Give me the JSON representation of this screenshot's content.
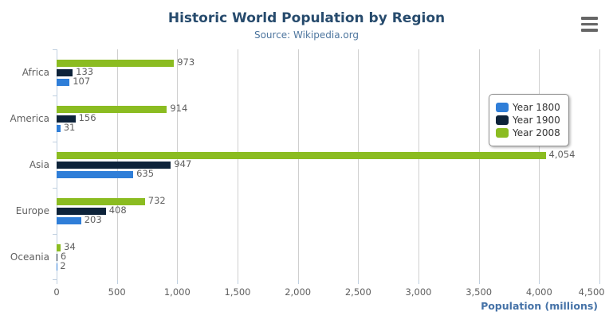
{
  "header": {
    "title": "Historic World Population by Region",
    "subtitle": "Source: Wikipedia.org"
  },
  "menu": {
    "icon": "hamburger-menu-icon"
  },
  "colors": {
    "title": "#274b6d",
    "subtitle": "#4d759e",
    "axis_title": "#4572a7",
    "labels": "#606060",
    "gridline": "#cfcfcf",
    "axis_line": "#c0d0e0",
    "legend_border": "#909090",
    "menu_icon": "#666666"
  },
  "chart_data": {
    "type": "bar",
    "orientation": "horizontal",
    "title": "Historic World Population by Region",
    "subtitle": "Source: Wikipedia.org",
    "categories": [
      "Africa",
      "America",
      "Asia",
      "Europe",
      "Oceania"
    ],
    "series": [
      {
        "name": "Year 1800",
        "color": "#2f7ed8",
        "values": [
          107,
          31,
          635,
          203,
          2
        ]
      },
      {
        "name": "Year 1900",
        "color": "#0d233a",
        "values": [
          133,
          156,
          947,
          408,
          6
        ]
      },
      {
        "name": "Year 2008",
        "color": "#8bbc21",
        "values": [
          973,
          914,
          4054,
          732,
          34
        ]
      }
    ],
    "bar_display_order_top_to_bottom": [
      "Year 2008",
      "Year 1900",
      "Year 1800"
    ],
    "data_labels": {
      "Africa": {
        "Year 2008": "973",
        "Year 1900": "133",
        "Year 1800": "107"
      },
      "America": {
        "Year 2008": "914",
        "Year 1900": "156",
        "Year 1800": "31"
      },
      "Asia": {
        "Year 2008": "4,054",
        "Year 1900": "947",
        "Year 1800": "635"
      },
      "Europe": {
        "Year 2008": "732",
        "Year 1900": "408",
        "Year 1800": "203"
      },
      "Oceania": {
        "Year 2008": "34",
        "Year 1900": "6",
        "Year 1800": "2"
      }
    },
    "xlabel": "Population (millions)",
    "ylabel": "",
    "xlim": [
      0,
      4500
    ],
    "x_tick_step": 500,
    "x_tick_labels": [
      "0",
      "500",
      "1,000",
      "1,500",
      "2,000",
      "2,500",
      "3,000",
      "3,500",
      "4,000",
      "4,500"
    ],
    "grid": true,
    "legend": {
      "position": "right",
      "items": [
        "Year 1800",
        "Year 1900",
        "Year 2008"
      ]
    }
  }
}
